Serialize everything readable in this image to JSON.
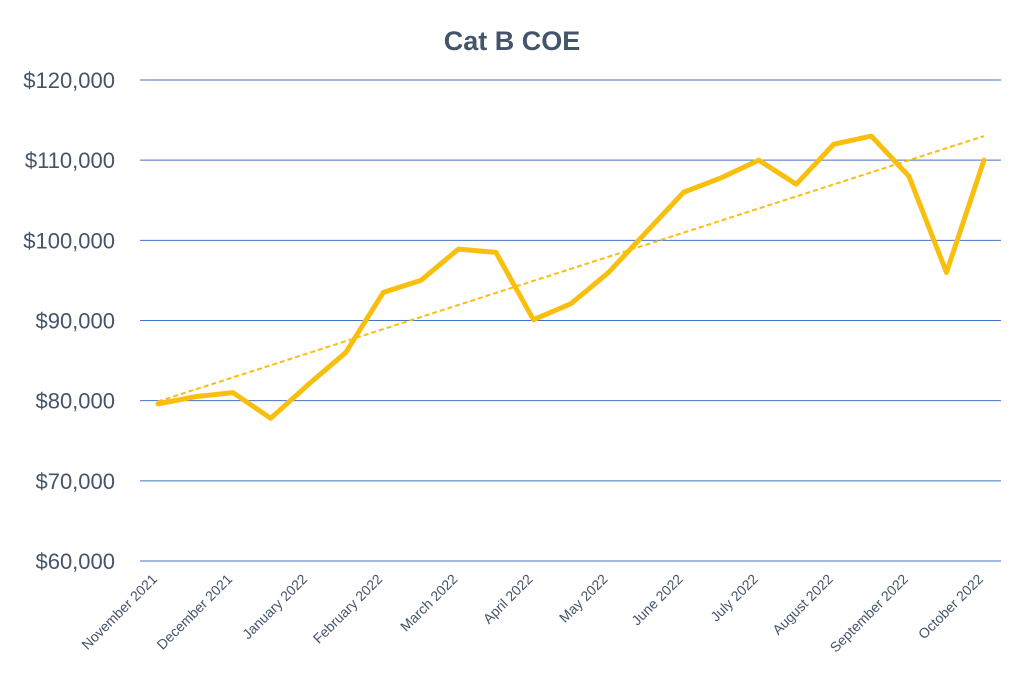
{
  "chart_data": {
    "type": "line",
    "title": "Cat B COE",
    "xlabel": "",
    "ylabel": "",
    "x": [
      "November 2021",
      "",
      "December 2021",
      "",
      "January 2022",
      "",
      "February 2022",
      "",
      "March 2022",
      "",
      "April 2022",
      "",
      "May 2022",
      "",
      "June 2022",
      "",
      "July 2022",
      "",
      "August 2022",
      "",
      "September 2022",
      "",
      "October 2022"
    ],
    "xtick_labels": [
      "November 2021",
      "December 2021",
      "January 2022",
      "February 2022",
      "March 2022",
      "April 2022",
      "May 2022",
      "June 2022",
      "July 2022",
      "August 2022",
      "September 2022",
      "October 2022"
    ],
    "ylim": [
      60000,
      120000
    ],
    "yticks": [
      60000,
      70000,
      80000,
      90000,
      100000,
      110000,
      120000
    ],
    "ytick_labels": [
      "$60,000",
      "$70,000",
      "$80,000",
      "$90,000",
      "$100,000",
      "$110,000",
      "$120,000"
    ],
    "grid": true,
    "series": [
      {
        "values": [
          79600,
          80500,
          81000,
          77800,
          82000,
          86000,
          93500,
          95000,
          98900,
          98500,
          90100,
          92100,
          96000,
          101000,
          106000,
          107800,
          110000,
          107000,
          112000,
          113000,
          108000,
          96000,
          110000
        ],
        "color": "#f9bf0f"
      }
    ],
    "trendline": {
      "type": "linear",
      "start": 79900,
      "end": 113000,
      "color": "#f9bf0f",
      "style": "dashed"
    },
    "gridline_color": "#4472c4"
  }
}
